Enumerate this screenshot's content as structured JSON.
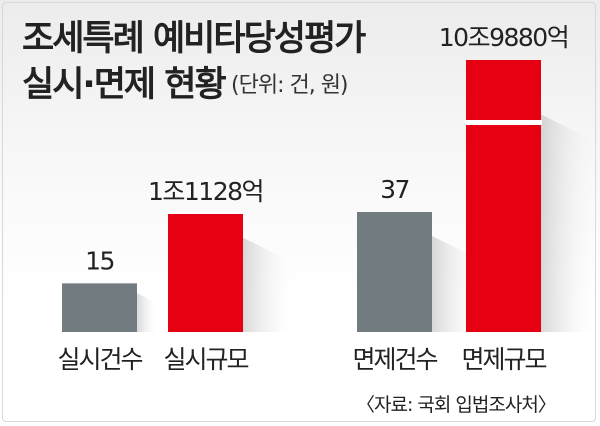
{
  "title_line1": "조세특례 예비타당성평가",
  "title_line2": "실시·면제 현황",
  "unit_note": "(단위: 건, 원)",
  "source_note": "〈자료: 국회 입법조사처〉",
  "colors": {
    "count_bar": "#727b80",
    "scale_bar": "#e60012",
    "text": "#222222"
  },
  "chart_data": {
    "type": "bar",
    "categories": [
      "실시건수",
      "실시규모",
      "면제건수",
      "면제규모"
    ],
    "values": [
      15,
      11128,
      37,
      109880
    ],
    "value_labels": [
      "15",
      "1조1128억",
      "37",
      "10조9880억"
    ],
    "series": [
      {
        "values": [
          15,
          null,
          37,
          null
        ]
      },
      {
        "values": [
          null,
          11128,
          null,
          109880
        ],
        "note": "억원 (1조1128억, 10조9880억)"
      }
    ],
    "axis_break": "면제규모 bar is drawn with a break (not to scale)",
    "grid": false,
    "legend": "none"
  }
}
